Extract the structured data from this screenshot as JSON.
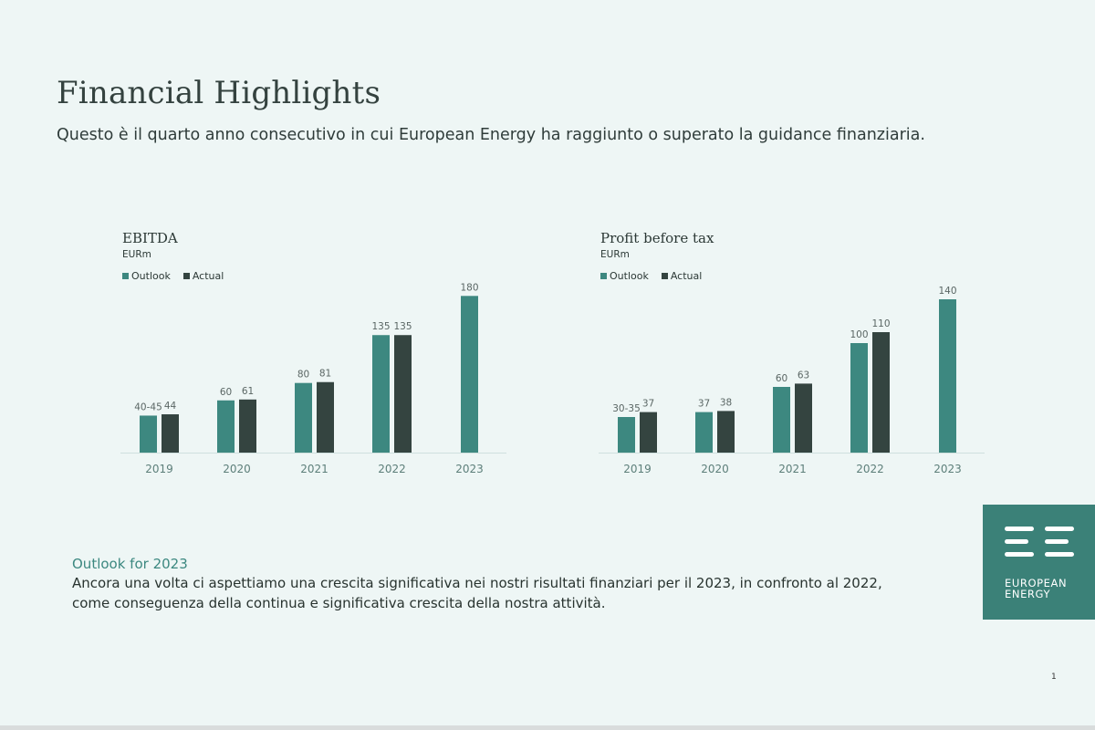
{
  "header": {
    "title": "Financial Highlights",
    "subtitle": "Questo è il quarto anno consecutivo in cui European Energy ha raggiunto o superato la guidance finanziaria."
  },
  "colors": {
    "outlook": "#3d8880",
    "actual": "#344440",
    "axis": "#cfe0de",
    "background": "#eef6f5"
  },
  "chart_data": [
    {
      "type": "bar",
      "title": "EBITDA",
      "unit": "EURm",
      "categories": [
        "2019",
        "2020",
        "2021",
        "2022",
        "2023"
      ],
      "series": [
        {
          "name": "Outlook",
          "values": [
            42.5,
            60,
            80,
            135,
            180
          ],
          "labels": [
            "40-45",
            "60",
            "80",
            "135",
            "180"
          ]
        },
        {
          "name": "Actual",
          "values": [
            44,
            61,
            81,
            135,
            null
          ],
          "labels": [
            "44",
            "61",
            "81",
            "135",
            ""
          ]
        }
      ],
      "ylim": [
        0,
        195
      ],
      "grid": false,
      "legend": "top-left"
    },
    {
      "type": "bar",
      "title": "Profit before tax",
      "unit": "EURm",
      "categories": [
        "2019",
        "2020",
        "2021",
        "2022",
        "2023"
      ],
      "series": [
        {
          "name": "Outlook",
          "values": [
            32.5,
            37,
            60,
            100,
            140
          ],
          "labels": [
            "30-35",
            "37",
            "60",
            "100",
            "140"
          ]
        },
        {
          "name": "Actual",
          "values": [
            37,
            38,
            63,
            110,
            null
          ],
          "labels": [
            "37",
            "38",
            "63",
            "110",
            ""
          ]
        }
      ],
      "ylim": [
        0,
        155
      ],
      "grid": false,
      "legend": "top-left"
    }
  ],
  "outlook": {
    "heading": "Outlook for 2023",
    "body": "Ancora una volta ci aspettiamo una crescita significativa nei nostri risultati finanziari per il 2023, in confronto al 2022, come conseguenza della continua e significativa crescita della nostra attività."
  },
  "logo": {
    "line1": "EUROPEAN",
    "line2": "ENERGY"
  },
  "page_number": "1"
}
